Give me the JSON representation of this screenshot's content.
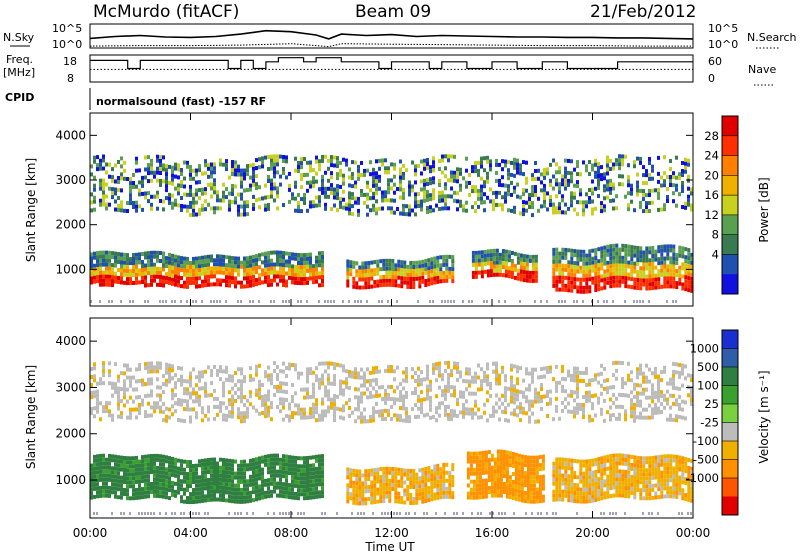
{
  "header": {
    "station": "McMurdo (fitACF)",
    "beam": "Beam 09",
    "date": "21/Feb/2012"
  },
  "noise_panel": {
    "left_label": "N.Sky",
    "right_label": "N.Search",
    "left_ticks": [
      "10^5",
      "10^0"
    ],
    "right_ticks": [
      "10^5",
      "10^0"
    ]
  },
  "freq_panel": {
    "left_label_top": "Freq.",
    "left_label_bottom": "[MHz]",
    "right_label": "Nave",
    "left_ticks": [
      "18",
      "8"
    ],
    "right_ticks": [
      "60",
      "0"
    ]
  },
  "cpid": {
    "label": "CPID",
    "text": "normalsound (fast) -157 RF"
  },
  "range_axis": {
    "ylabel": "Slant Range [km]",
    "ticks": [
      "4000",
      "3000",
      "2000",
      "1000"
    ]
  },
  "time_axis": {
    "xlabel": "Time UT",
    "ticks": [
      "00:00",
      "04:00",
      "08:00",
      "12:00",
      "16:00",
      "20:00",
      "00:00"
    ]
  },
  "power_colorbar": {
    "label": "Power [dB]",
    "ticks": [
      "28",
      "24",
      "20",
      "16",
      "12",
      "8",
      "4"
    ],
    "colors": [
      "#e00000",
      "#ff3000",
      "#ff8000",
      "#f0b000",
      "#c8d020",
      "#5aa050",
      "#3a7a50",
      "#2050b0",
      "#1010e0"
    ]
  },
  "velocity_colorbar": {
    "label": "Velocity [m s⁻¹]",
    "ticks": [
      "1000",
      "500",
      "100",
      "25",
      "-25",
      "-100",
      "-500",
      "-1000"
    ],
    "colors": [
      "#1a2fd0",
      "#2f5ea8",
      "#2f8040",
      "#3aa030",
      "#7ad040",
      "#bcbcbc",
      "#f0b000",
      "#ff9000",
      "#ff5500",
      "#e00000"
    ]
  },
  "chart_data": [
    {
      "type": "line",
      "title": "N.Sky / N.Search",
      "x_range": [
        "00:00",
        "24:00"
      ],
      "ylim_log10": [
        0,
        5
      ],
      "series": [
        {
          "name": "N.Sky",
          "style": "solid",
          "x": [
            0,
            1,
            2,
            3,
            4,
            5,
            6,
            7,
            8,
            9,
            9.5,
            10,
            11,
            12,
            13,
            14,
            15,
            16,
            17,
            18,
            19,
            20,
            21,
            22,
            23,
            24
          ],
          "y_log10": [
            2.0,
            2.4,
            2.6,
            2.3,
            2.2,
            2.4,
            2.9,
            3.6,
            3.4,
            2.7,
            1.9,
            2.9,
            2.6,
            2.8,
            2.4,
            2.6,
            2.5,
            2.4,
            2.3,
            2.3,
            2.2,
            2.2,
            2.1,
            2.1,
            2.0,
            1.9
          ]
        },
        {
          "name": "N.Search",
          "style": "dotted",
          "x": [
            0,
            2,
            4,
            6,
            8,
            9,
            9.5,
            10,
            12,
            14,
            16,
            18,
            20,
            22,
            24
          ],
          "y_log10": [
            0.4,
            0.5,
            0.5,
            0.6,
            0.9,
            0.5,
            0.3,
            0.9,
            0.8,
            0.7,
            0.6,
            0.5,
            0.5,
            0.4,
            0.4
          ]
        }
      ]
    },
    {
      "type": "line",
      "title": "Freq. [MHz] / Nave",
      "x_range": [
        "00:00",
        "24:00"
      ],
      "series": [
        {
          "name": "Freq.",
          "unit": "MHz",
          "ylim": [
            8,
            18
          ],
          "x": [
            0,
            1.5,
            1.5,
            2,
            2,
            5.5,
            5.5,
            6,
            6,
            6.5,
            6.5,
            7,
            7,
            7.5,
            7.5,
            8.5,
            8.5,
            9,
            9,
            10,
            10,
            11.5,
            11.5,
            12,
            12,
            13.5,
            13.5,
            14,
            14,
            15,
            15,
            16,
            16,
            17,
            17,
            18,
            18,
            19,
            19,
            21,
            21,
            24
          ],
          "y": [
            16,
            16,
            13,
            13,
            16,
            16,
            13,
            13,
            16,
            16,
            13,
            13,
            15.5,
            15.5,
            17,
            17,
            15.5,
            15.5,
            17,
            17,
            15.5,
            15.5,
            13,
            13,
            15.5,
            15.5,
            13,
            13,
            15.5,
            15.5,
            13,
            13,
            15.5,
            15.5,
            13,
            13,
            15.5,
            15.5,
            13,
            13,
            15.5,
            15.5
          ]
        },
        {
          "name": "Nave",
          "ylim": [
            0,
            60
          ],
          "x": [
            0,
            24
          ],
          "y": [
            28,
            28
          ]
        }
      ]
    },
    {
      "type": "heatmap",
      "title": "Power [dB]",
      "x_range": [
        "00:00",
        "24:00"
      ],
      "ylim_km": [
        180,
        4500
      ],
      "zlim_dB": [
        0,
        32
      ],
      "regions": [
        {
          "t_start": 0.0,
          "t_end": 9.2,
          "range_km": [
            650,
            1350
          ],
          "power_dB": 28
        },
        {
          "t_start": 10.2,
          "t_end": 14.4,
          "range_km": [
            650,
            1250
          ],
          "power_dB": 28
        },
        {
          "t_start": 15.2,
          "t_end": 17.8,
          "range_km": [
            800,
            1400
          ],
          "power_dB": 26
        },
        {
          "t_start": 18.4,
          "t_end": 24.0,
          "range_km": [
            550,
            1500
          ],
          "power_dB": 22
        },
        {
          "t_start": 0.0,
          "t_end": 24.0,
          "range_km": [
            2300,
            3500
          ],
          "power_dB": 10
        }
      ]
    },
    {
      "type": "heatmap",
      "title": "Velocity [m s⁻¹]",
      "x_range": [
        "00:00",
        "24:00"
      ],
      "ylim_km": [
        180,
        4500
      ],
      "zlim_ms": [
        -1000,
        1000
      ],
      "regions": [
        {
          "t_start": 0.0,
          "t_end": 9.2,
          "range_km": [
            600,
            1500
          ],
          "velocity_ms": 300
        },
        {
          "t_start": 10.2,
          "t_end": 14.4,
          "range_km": [
            550,
            1300
          ],
          "velocity_ms": -60
        },
        {
          "t_start": 15.0,
          "t_end": 18.0,
          "range_km": [
            600,
            1600
          ],
          "velocity_ms": -250
        },
        {
          "t_start": 18.4,
          "t_end": 24.0,
          "range_km": [
            600,
            1500
          ],
          "velocity_ms": -80
        },
        {
          "t_start": 0.0,
          "t_end": 24.0,
          "range_km": [
            2300,
            3500
          ],
          "velocity_ms": 0
        }
      ]
    }
  ]
}
